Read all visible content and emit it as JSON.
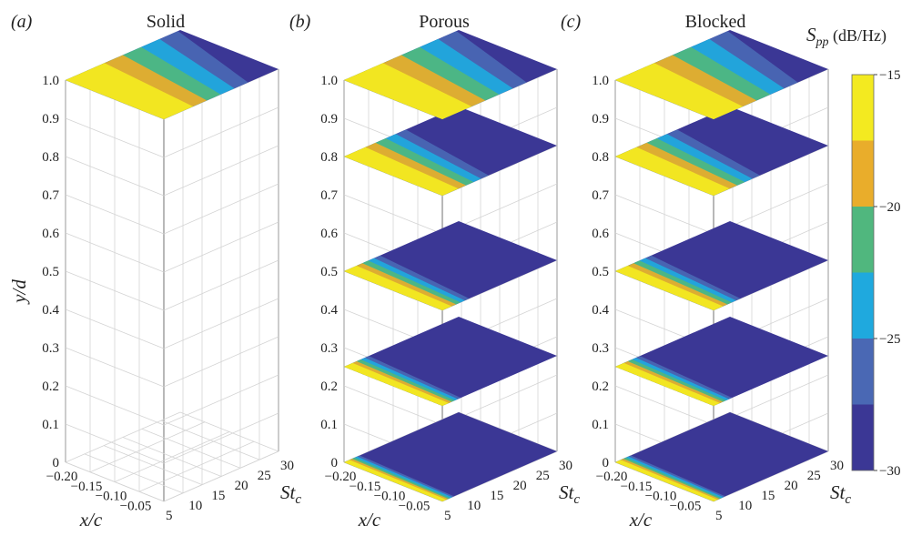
{
  "chart_data": {
    "type": "heatmap",
    "panels": [
      {
        "label": "(a)",
        "title": "Solid",
        "slices": [
          1.0
        ]
      },
      {
        "label": "(b)",
        "title": "Porous",
        "slices": [
          0.0,
          0.25,
          0.5,
          0.8,
          1.0
        ]
      },
      {
        "label": "(c)",
        "title": "Blocked",
        "slices": [
          0.0,
          0.25,
          0.5,
          0.8,
          1.0
        ]
      }
    ],
    "ylabel_parts": {
      "main": "y/d"
    },
    "y_ticks": [
      "0",
      "0.1",
      "0.2",
      "0.3",
      "0.4",
      "0.5",
      "0.6",
      "0.7",
      "0.8",
      "0.9",
      "1.0"
    ],
    "x_label": "x/c",
    "x_ticks": [
      "−0.20",
      "−0.15",
      "−0.10",
      "−0.05"
    ],
    "st_label": {
      "main": "St",
      "sub": "c"
    },
    "st_ticks": [
      "5",
      "10",
      "15",
      "20",
      "25",
      "30"
    ],
    "ylim": [
      0,
      1.0
    ],
    "xlim": [
      -0.2,
      0
    ],
    "stlim": [
      5,
      30
    ],
    "colorbar": {
      "label_main": "S",
      "label_sub": "pp",
      "label_unit": " (dB/Hz)",
      "range": [
        -30,
        -15
      ],
      "ticks": [
        "−15",
        "−20",
        "−25",
        "−30"
      ],
      "levels": [
        {
          "from": -30,
          "to": -27.5,
          "color": "#3b3795"
        },
        {
          "from": -27.5,
          "to": -25,
          "color": "#4a68b4"
        },
        {
          "from": -25,
          "to": -22.5,
          "color": "#1fa9de"
        },
        {
          "from": -22.5,
          "to": -20,
          "color": "#50b77e"
        },
        {
          "from": -20,
          "to": -17.5,
          "color": "#e9ad2b"
        },
        {
          "from": -17.5,
          "to": -15,
          "color": "#f3ea20"
        }
      ]
    }
  }
}
